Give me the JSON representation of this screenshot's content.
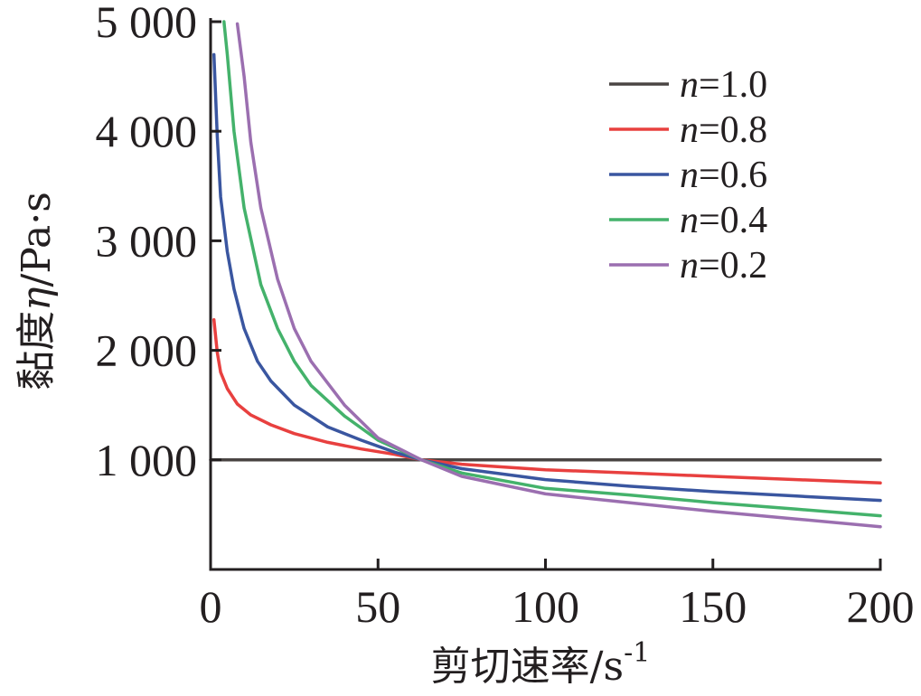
{
  "chart_data": {
    "type": "line",
    "title": "",
    "xlabel": "剪切速率/s",
    "xlabel_sup": "-1",
    "ylabel_prefix": "黏度",
    "ylabel_symbol": "η",
    "ylabel_suffix": "/Pa·s",
    "xlim": [
      0,
      200
    ],
    "ylim": [
      0,
      5000
    ],
    "xticks": [
      {
        "value": 0,
        "label": "0"
      },
      {
        "value": 50,
        "label": "50"
      },
      {
        "value": 100,
        "label": "100"
      },
      {
        "value": 150,
        "label": "150"
      },
      {
        "value": 200,
        "label": "200"
      }
    ],
    "yticks": [
      {
        "value": 1000,
        "label": "1 000"
      },
      {
        "value": 2000,
        "label": "2 000"
      },
      {
        "value": 3000,
        "label": "3 000"
      },
      {
        "value": 4000,
        "label": "4 000"
      },
      {
        "value": 5000,
        "label": "5 000"
      }
    ],
    "grid": false,
    "legend_position": "top-right",
    "series": [
      {
        "name_var": "n",
        "name_rest": "=1.0",
        "color": "#4a4543",
        "points": [
          [
            0,
            1000
          ],
          [
            200,
            1000
          ]
        ]
      },
      {
        "name_var": "n",
        "name_rest": "=0.8",
        "color": "#e8403f",
        "points": [
          [
            1,
            2280
          ],
          [
            2,
            1980
          ],
          [
            3,
            1800
          ],
          [
            5,
            1650
          ],
          [
            8,
            1510
          ],
          [
            12,
            1410
          ],
          [
            18,
            1320
          ],
          [
            25,
            1240
          ],
          [
            35,
            1160
          ],
          [
            45,
            1100
          ],
          [
            55,
            1050
          ],
          [
            63,
            1000
          ],
          [
            75,
            960
          ],
          [
            100,
            910
          ],
          [
            125,
            880
          ],
          [
            150,
            850
          ],
          [
            175,
            820
          ],
          [
            200,
            790
          ]
        ]
      },
      {
        "name_var": "n",
        "name_rest": "=0.6",
        "color": "#3a56a0",
        "points": [
          [
            1,
            4700
          ],
          [
            2,
            3950
          ],
          [
            3,
            3400
          ],
          [
            5,
            2900
          ],
          [
            7,
            2560
          ],
          [
            10,
            2200
          ],
          [
            14,
            1900
          ],
          [
            18,
            1720
          ],
          [
            25,
            1500
          ],
          [
            35,
            1300
          ],
          [
            45,
            1180
          ],
          [
            55,
            1070
          ],
          [
            63,
            1000
          ],
          [
            75,
            920
          ],
          [
            100,
            820
          ],
          [
            125,
            760
          ],
          [
            150,
            710
          ],
          [
            175,
            670
          ],
          [
            200,
            630
          ]
        ]
      },
      {
        "name_var": "n",
        "name_rest": "=0.4",
        "color": "#44b26b",
        "points": [
          [
            4,
            5000
          ],
          [
            5,
            4700
          ],
          [
            7,
            4000
          ],
          [
            10,
            3300
          ],
          [
            15,
            2600
          ],
          [
            20,
            2200
          ],
          [
            25,
            1900
          ],
          [
            30,
            1680
          ],
          [
            40,
            1400
          ],
          [
            50,
            1180
          ],
          [
            63,
            1000
          ],
          [
            75,
            880
          ],
          [
            100,
            740
          ],
          [
            125,
            680
          ],
          [
            150,
            610
          ],
          [
            175,
            550
          ],
          [
            200,
            490
          ]
        ]
      },
      {
        "name_var": "n",
        "name_rest": "=0.2",
        "color": "#9b6fb0",
        "points": [
          [
            8,
            4980
          ],
          [
            10,
            4500
          ],
          [
            12,
            3900
          ],
          [
            15,
            3300
          ],
          [
            20,
            2650
          ],
          [
            25,
            2200
          ],
          [
            30,
            1900
          ],
          [
            40,
            1500
          ],
          [
            50,
            1200
          ],
          [
            63,
            1000
          ],
          [
            75,
            850
          ],
          [
            100,
            690
          ],
          [
            125,
            610
          ],
          [
            150,
            530
          ],
          [
            175,
            460
          ],
          [
            200,
            390
          ]
        ]
      }
    ]
  }
}
